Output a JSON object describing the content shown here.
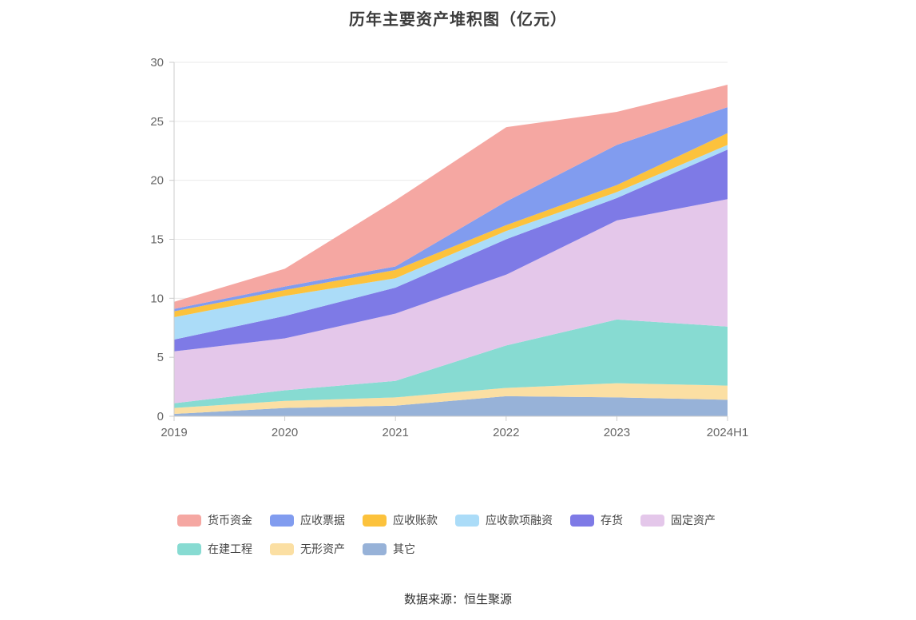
{
  "chart_data": {
    "type": "area",
    "stacked": true,
    "title": "历年主要资产堆积图（亿元）",
    "source": "数据来源：恒生聚源",
    "xlabel": "",
    "ylabel": "",
    "ylim": [
      0,
      30
    ],
    "yticks": [
      0,
      5,
      10,
      15,
      20,
      25,
      30
    ],
    "grid": true,
    "legend_position": "bottom",
    "categories": [
      "2019",
      "2020",
      "2021",
      "2022",
      "2023",
      "2024H1"
    ],
    "legend_order": [
      "货币资金",
      "应收票据",
      "应收账款",
      "应收款项融资",
      "存货",
      "固定资产",
      "在建工程",
      "无形资产",
      "其它"
    ],
    "series": [
      {
        "name": "其它",
        "color": "#97B2D8",
        "values": [
          0.2,
          0.7,
          0.9,
          1.7,
          1.6,
          1.4
        ]
      },
      {
        "name": "无形资产",
        "color": "#FBDFA3",
        "values": [
          0.5,
          0.6,
          0.7,
          0.7,
          1.2,
          1.2
        ]
      },
      {
        "name": "在建工程",
        "color": "#87DBD2",
        "values": [
          0.4,
          0.9,
          1.4,
          3.6,
          5.4,
          5.0
        ]
      },
      {
        "name": "固定资产",
        "color": "#E4C7EA",
        "values": [
          4.4,
          4.4,
          5.7,
          6.0,
          8.4,
          10.8
        ]
      },
      {
        "name": "存货",
        "color": "#7E7AE6",
        "values": [
          1.0,
          1.9,
          2.2,
          3.0,
          1.9,
          4.2
        ]
      },
      {
        "name": "应收款项融资",
        "color": "#ABDCF8",
        "values": [
          1.9,
          1.7,
          0.8,
          0.7,
          0.5,
          0.4
        ]
      },
      {
        "name": "应收账款",
        "color": "#FCC23C",
        "values": [
          0.5,
          0.5,
          0.7,
          0.5,
          0.6,
          1.0
        ]
      },
      {
        "name": "应收票据",
        "color": "#819CEF",
        "values": [
          0.2,
          0.3,
          0.3,
          2.0,
          3.4,
          2.2
        ]
      },
      {
        "name": "货币资金",
        "color": "#F5A7A2",
        "values": [
          0.6,
          1.5,
          5.6,
          6.3,
          2.8,
          1.9
        ]
      }
    ],
    "colors": {
      "grid_line": "#e9e9e9",
      "axis_line": "#cccccc",
      "tick_text": "#666666"
    }
  }
}
